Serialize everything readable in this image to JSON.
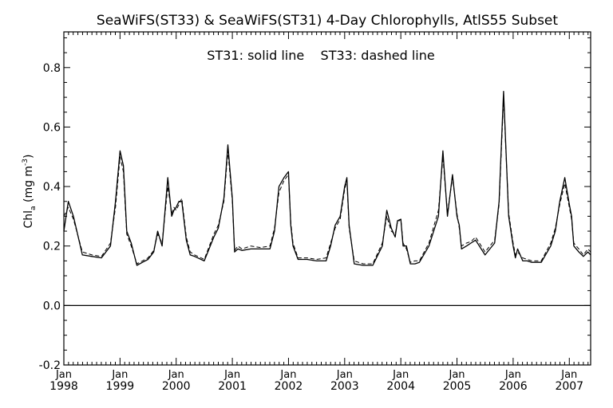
{
  "chart_data": {
    "type": "line",
    "title": "SeaWiFS(ST33) & SeaWiFS(ST31) 4-Day Chlorophylls, AtlS55 Subset",
    "annotation": "ST31: solid line    ST33: dashed line",
    "ylabel_main": "Chl",
    "ylabel_sub": "a",
    "ylabel_unit": " (mg m",
    "ylabel_sup": "-3",
    "ylabel_close": ")",
    "ylim": [
      -0.2,
      0.92
    ],
    "y_ticks": [
      -0.2,
      0.0,
      0.2,
      0.4,
      0.6,
      0.8
    ],
    "y_tick_labels": [
      "-0.2",
      "0.0",
      "0.2",
      "0.4",
      "0.6",
      "0.8"
    ],
    "xlim": [
      1998.0,
      2007.38
    ],
    "x_ticks": [
      {
        "month": "Jan",
        "year": "1998"
      },
      {
        "month": "Jan",
        "year": "1999"
      },
      {
        "month": "Jan",
        "year": "2000"
      },
      {
        "month": "Jan",
        "year": "2001"
      },
      {
        "month": "Jan",
        "year": "2002"
      },
      {
        "month": "Jan",
        "year": "2003"
      },
      {
        "month": "Jan",
        "year": "2004"
      },
      {
        "month": "Jan",
        "year": "2005"
      },
      {
        "month": "Jan",
        "year": "2006"
      },
      {
        "month": "Jan",
        "year": "2007"
      }
    ],
    "zero_line": 0.0,
    "grid": false,
    "series": [
      {
        "name": "ST31",
        "style": "solid",
        "color": "#000000",
        "x": [
          1998.0,
          1998.08,
          1998.17,
          1998.33,
          1998.5,
          1998.67,
          1998.83,
          1998.92,
          1999.0,
          1999.06,
          1999.12,
          1999.2,
          1999.3,
          1999.4,
          1999.5,
          1999.6,
          1999.67,
          1999.75,
          1999.85,
          1999.92,
          1999.96,
          2000.0,
          2000.05,
          2000.1,
          2000.18,
          2000.25,
          2000.33,
          2000.5,
          2000.67,
          2000.75,
          2000.85,
          2000.92,
          2001.0,
          2001.04,
          2001.1,
          2001.17,
          2001.33,
          2001.5,
          2001.67,
          2001.75,
          2001.83,
          2001.92,
          2002.0,
          2002.04,
          2002.08,
          2002.17,
          2002.33,
          2002.5,
          2002.67,
          2002.75,
          2002.83,
          2002.92,
          2003.0,
          2003.04,
          2003.08,
          2003.17,
          2003.33,
          2003.5,
          2003.67,
          2003.75,
          2003.83,
          2003.9,
          2003.94,
          2004.0,
          2004.04,
          2004.1,
          2004.17,
          2004.25,
          2004.33,
          2004.5,
          2004.67,
          2004.75,
          2004.83,
          2004.92,
          2005.0,
          2005.04,
          2005.08,
          2005.17,
          2005.25,
          2005.33,
          2005.5,
          2005.67,
          2005.75,
          2005.83,
          2005.92,
          2006.0,
          2006.04,
          2006.08,
          2006.17,
          2006.25,
          2006.33,
          2006.5,
          2006.67,
          2006.75,
          2006.83,
          2006.92,
          2007.0,
          2007.04,
          2007.08,
          2007.17,
          2007.25,
          2007.33,
          2007.38
        ],
        "y": [
          0.25,
          0.35,
          0.3,
          0.17,
          0.165,
          0.16,
          0.2,
          0.35,
          0.52,
          0.47,
          0.25,
          0.21,
          0.135,
          0.145,
          0.155,
          0.18,
          0.25,
          0.2,
          0.43,
          0.3,
          0.32,
          0.33,
          0.35,
          0.35,
          0.22,
          0.17,
          0.165,
          0.15,
          0.23,
          0.26,
          0.36,
          0.54,
          0.36,
          0.18,
          0.19,
          0.185,
          0.19,
          0.19,
          0.19,
          0.25,
          0.4,
          0.43,
          0.45,
          0.27,
          0.2,
          0.155,
          0.155,
          0.15,
          0.15,
          0.2,
          0.27,
          0.3,
          0.4,
          0.43,
          0.27,
          0.14,
          0.135,
          0.135,
          0.2,
          0.32,
          0.26,
          0.23,
          0.285,
          0.29,
          0.2,
          0.2,
          0.14,
          0.14,
          0.145,
          0.2,
          0.3,
          0.52,
          0.3,
          0.44,
          0.3,
          0.27,
          0.19,
          0.2,
          0.21,
          0.22,
          0.17,
          0.21,
          0.35,
          0.72,
          0.3,
          0.2,
          0.16,
          0.19,
          0.15,
          0.15,
          0.145,
          0.145,
          0.2,
          0.25,
          0.35,
          0.43,
          0.34,
          0.3,
          0.2,
          0.18,
          0.165,
          0.18,
          0.17
        ]
      },
      {
        "name": "ST33",
        "style": "dashed",
        "color": "#000000",
        "x": [
          1998.0,
          1998.08,
          1998.17,
          1998.33,
          1998.5,
          1998.67,
          1998.83,
          1998.92,
          1999.0,
          1999.06,
          1999.12,
          1999.2,
          1999.3,
          1999.4,
          1999.5,
          1999.6,
          1999.67,
          1999.75,
          1999.85,
          1999.92,
          1999.96,
          2000.0,
          2000.05,
          2000.1,
          2000.18,
          2000.25,
          2000.33,
          2000.5,
          2000.67,
          2000.75,
          2000.85,
          2000.92,
          2001.0,
          2001.04,
          2001.1,
          2001.17,
          2001.33,
          2001.5,
          2001.67,
          2001.75,
          2001.83,
          2001.92,
          2002.0,
          2002.04,
          2002.08,
          2002.17,
          2002.33,
          2002.5,
          2002.67,
          2002.75,
          2002.83,
          2002.92,
          2003.0,
          2003.04,
          2003.08,
          2003.17,
          2003.33,
          2003.5,
          2003.67,
          2003.75,
          2003.83,
          2003.9,
          2003.94,
          2004.0,
          2004.04,
          2004.1,
          2004.17,
          2004.25,
          2004.33,
          2004.5,
          2004.67,
          2004.75,
          2004.83,
          2004.92,
          2005.0,
          2005.04,
          2005.08,
          2005.17,
          2005.25,
          2005.33,
          2005.5,
          2005.67,
          2005.75,
          2005.83,
          2005.92,
          2006.0,
          2006.04,
          2006.08,
          2006.17,
          2006.25,
          2006.33,
          2006.5,
          2006.67,
          2006.75,
          2006.83,
          2006.92,
          2007.0,
          2007.04,
          2007.08,
          2007.17,
          2007.25,
          2007.33,
          2007.38
        ],
        "y": [
          0.3,
          0.33,
          0.29,
          0.18,
          0.17,
          0.165,
          0.21,
          0.33,
          0.5,
          0.45,
          0.24,
          0.2,
          0.14,
          0.15,
          0.16,
          0.185,
          0.24,
          0.21,
          0.4,
          0.31,
          0.33,
          0.32,
          0.34,
          0.36,
          0.23,
          0.18,
          0.17,
          0.155,
          0.24,
          0.27,
          0.35,
          0.52,
          0.35,
          0.185,
          0.2,
          0.19,
          0.2,
          0.195,
          0.2,
          0.26,
          0.38,
          0.42,
          0.44,
          0.28,
          0.21,
          0.16,
          0.16,
          0.155,
          0.16,
          0.21,
          0.26,
          0.29,
          0.39,
          0.42,
          0.26,
          0.15,
          0.14,
          0.14,
          0.21,
          0.3,
          0.25,
          0.24,
          0.28,
          0.29,
          0.21,
          0.19,
          0.145,
          0.15,
          0.15,
          0.21,
          0.32,
          0.5,
          0.31,
          0.43,
          0.31,
          0.26,
          0.2,
          0.21,
          0.215,
          0.23,
          0.18,
          0.22,
          0.34,
          0.7,
          0.31,
          0.21,
          0.17,
          0.18,
          0.16,
          0.155,
          0.15,
          0.15,
          0.21,
          0.26,
          0.34,
          0.41,
          0.33,
          0.29,
          0.21,
          0.19,
          0.17,
          0.19,
          0.18
        ]
      }
    ]
  }
}
